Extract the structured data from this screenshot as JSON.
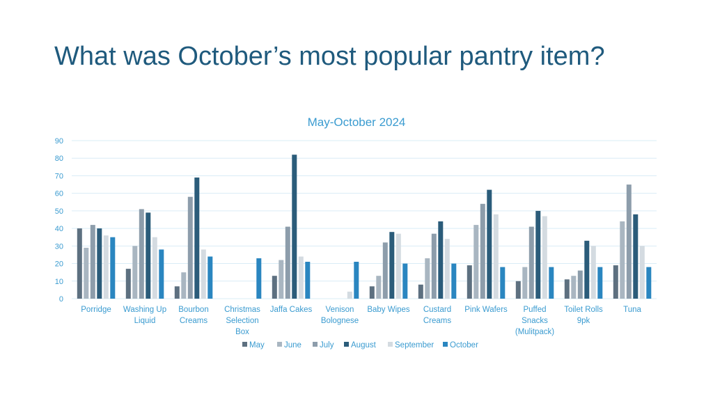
{
  "slide": {
    "title": "What was October’s most popular pantry item?"
  },
  "colors": {
    "title": "#1f5a7d",
    "chart_text": "#3a9bd0",
    "gridline": "#d9ecf6"
  },
  "chart_data": {
    "type": "bar",
    "title": "May-October 2024",
    "xlabel": "",
    "ylabel": "",
    "ylim": [
      0,
      90
    ],
    "yticks": [
      0,
      10,
      20,
      30,
      40,
      50,
      60,
      70,
      80,
      90
    ],
    "grid": true,
    "legend_position": "bottom",
    "categories": [
      [
        "Porridge"
      ],
      [
        "Washing Up",
        "Liquid"
      ],
      [
        "Bourbon",
        "Creams"
      ],
      [
        "Christmas",
        "Selection",
        "Box"
      ],
      [
        "Jaffa Cakes"
      ],
      [
        "Venison",
        "Bolognese"
      ],
      [
        "Baby Wipes"
      ],
      [
        "Custard",
        "Creams"
      ],
      [
        "Pink Wafers"
      ],
      [
        "Puffed",
        "Snacks",
        "(Mulitpack)"
      ],
      [
        "Toilet Rolls",
        "9pk"
      ],
      [
        "Tuna"
      ]
    ],
    "series": [
      {
        "name": "May",
        "color": "#5d7080",
        "values": [
          40,
          17,
          7,
          0,
          13,
          0,
          7,
          8,
          19,
          10,
          11,
          19
        ]
      },
      {
        "name": "June",
        "color": "#a9b6c1",
        "values": [
          29,
          30,
          15,
          0,
          22,
          0,
          13,
          23,
          42,
          18,
          13,
          44
        ]
      },
      {
        "name": "July",
        "color": "#8d9dab",
        "values": [
          42,
          51,
          58,
          0,
          41,
          0,
          32,
          37,
          54,
          41,
          16,
          65
        ]
      },
      {
        "name": "August",
        "color": "#2b5c7a",
        "values": [
          40,
          49,
          69,
          0,
          82,
          0,
          38,
          44,
          62,
          50,
          33,
          48
        ]
      },
      {
        "name": "September",
        "color": "#d4dbe1",
        "values": [
          36,
          35,
          28,
          0,
          24,
          4,
          37,
          34,
          48,
          47,
          30,
          30
        ]
      },
      {
        "name": "October",
        "color": "#2a86c0",
        "values": [
          35,
          28,
          24,
          23,
          21,
          21,
          20,
          20,
          18,
          18,
          18,
          18
        ]
      }
    ]
  }
}
